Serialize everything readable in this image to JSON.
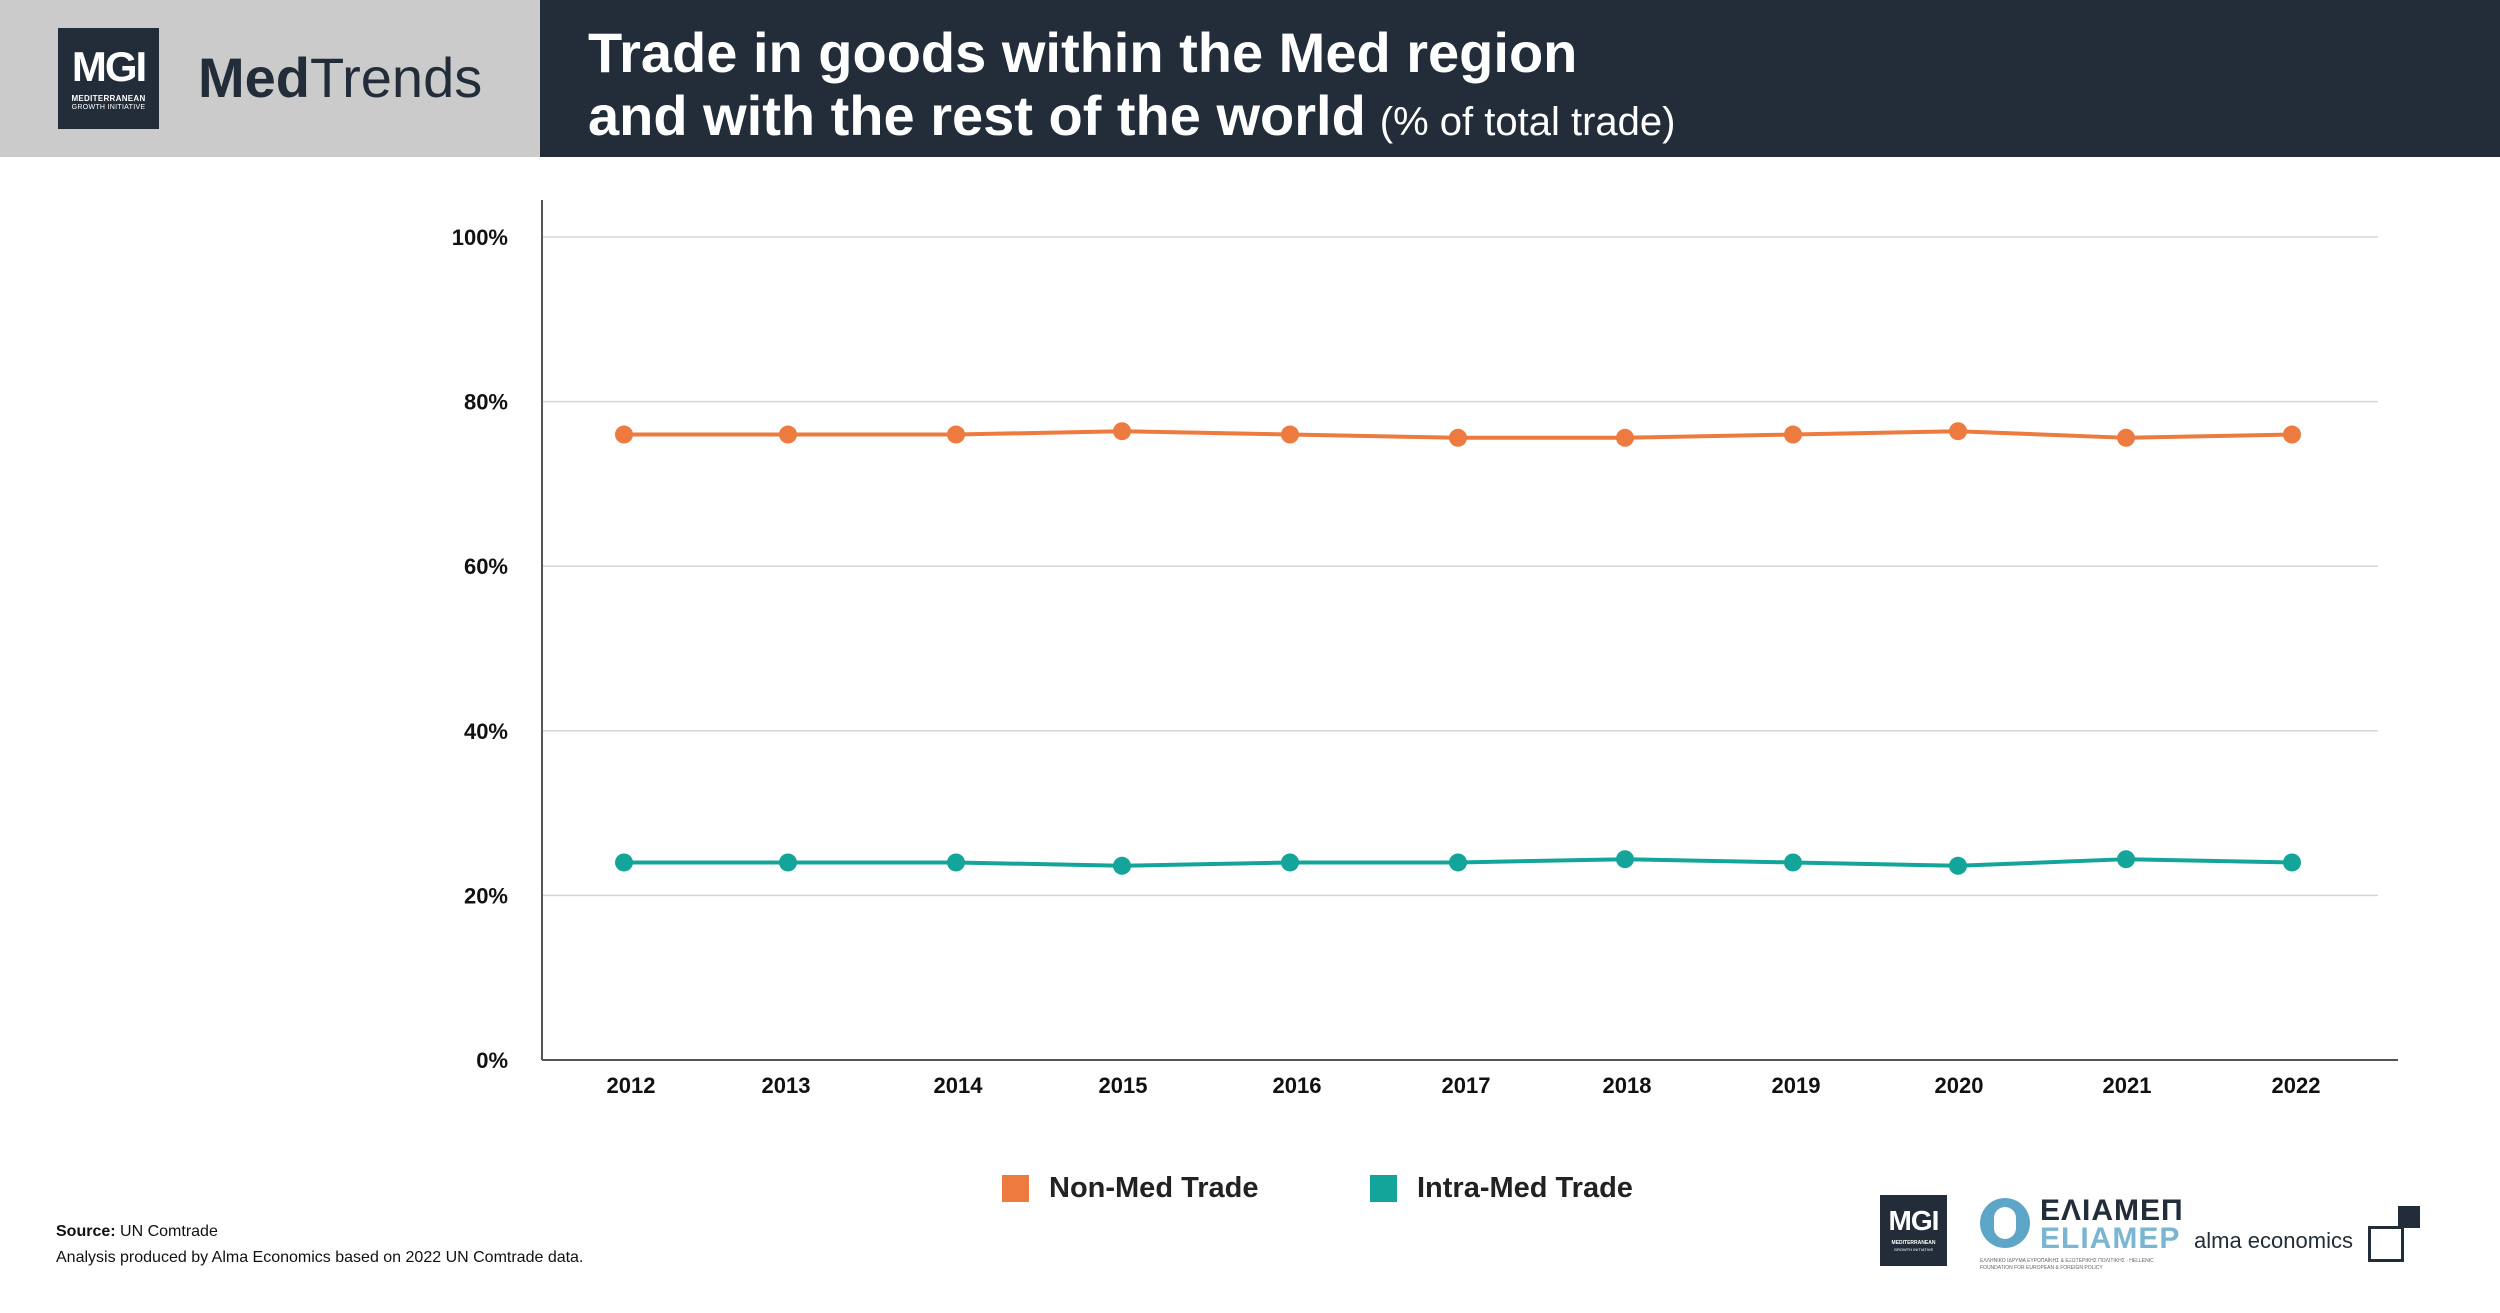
{
  "header": {
    "logo_text": "MGI",
    "logo_sub1": "MEDITERRANEAN",
    "logo_sub2": "GROWTH INITIATIVE",
    "brand_bold": "Med",
    "brand_light": "Trends",
    "title_line1": "Trade in goods within the Med region",
    "title_line2": "and with the rest of the world",
    "title_unit": "(% of total trade)"
  },
  "chart_data": {
    "type": "line",
    "title": "Trade in goods within the Med region and with the rest of the world",
    "subtitle": "(% of total trade)",
    "xlabel": "",
    "ylabel": "",
    "categories": [
      "2012",
      "2013",
      "2014",
      "2015",
      "2016",
      "2017",
      "2018",
      "2019",
      "2020",
      "2021",
      "2022"
    ],
    "y_ticks": [
      "0%",
      "20%",
      "40%",
      "60%",
      "80%",
      "100%"
    ],
    "y_tick_values": [
      0,
      20,
      40,
      60,
      80,
      100
    ],
    "ylim": [
      0,
      100
    ],
    "grid": true,
    "legend_position": "bottom",
    "series": [
      {
        "name": "Non-Med Trade",
        "color": "#ed7a3e",
        "values": [
          76.0,
          76.0,
          76.0,
          76.4,
          76.0,
          75.6,
          75.6,
          76.0,
          76.4,
          75.6,
          76.0
        ]
      },
      {
        "name": "Intra-Med Trade",
        "color": "#13a59a",
        "values": [
          24.0,
          24.0,
          24.0,
          23.6,
          24.0,
          24.0,
          24.4,
          24.0,
          23.6,
          24.4,
          24.0
        ]
      }
    ]
  },
  "legend": {
    "items": [
      {
        "label": "Non-Med Trade",
        "color": "#ed7a3e"
      },
      {
        "label": "Intra-Med Trade",
        "color": "#13a59a"
      }
    ]
  },
  "footer": {
    "source_label": "Source:",
    "source_value": "UN Comtrade",
    "analysis_note": "Analysis produced by Alma Economics based on 2022 UN Comtrade data.",
    "partner_mgi": "MGI",
    "partner_mgi_sub1": "MEDITERRANEAN",
    "partner_mgi_sub2": "GROWTH INITIATIVE",
    "eliamep_greek": "ΕΛΙΑΜΕΠ",
    "eliamep_latin": "ELIAMEP",
    "eliamep_desc": "ΕΛΛΗΝΙΚΟ ΙΔΡΥΜΑ ΕΥΡΩΠΑΪΚΗΣ & ΕΞΩΤΕΡΙΚΗΣ ΠΟΛΙΤΙΚΗΣ · HELLENIC FOUNDATION FOR EUROPEAN & FOREIGN POLICY",
    "alma": "alma economics"
  }
}
